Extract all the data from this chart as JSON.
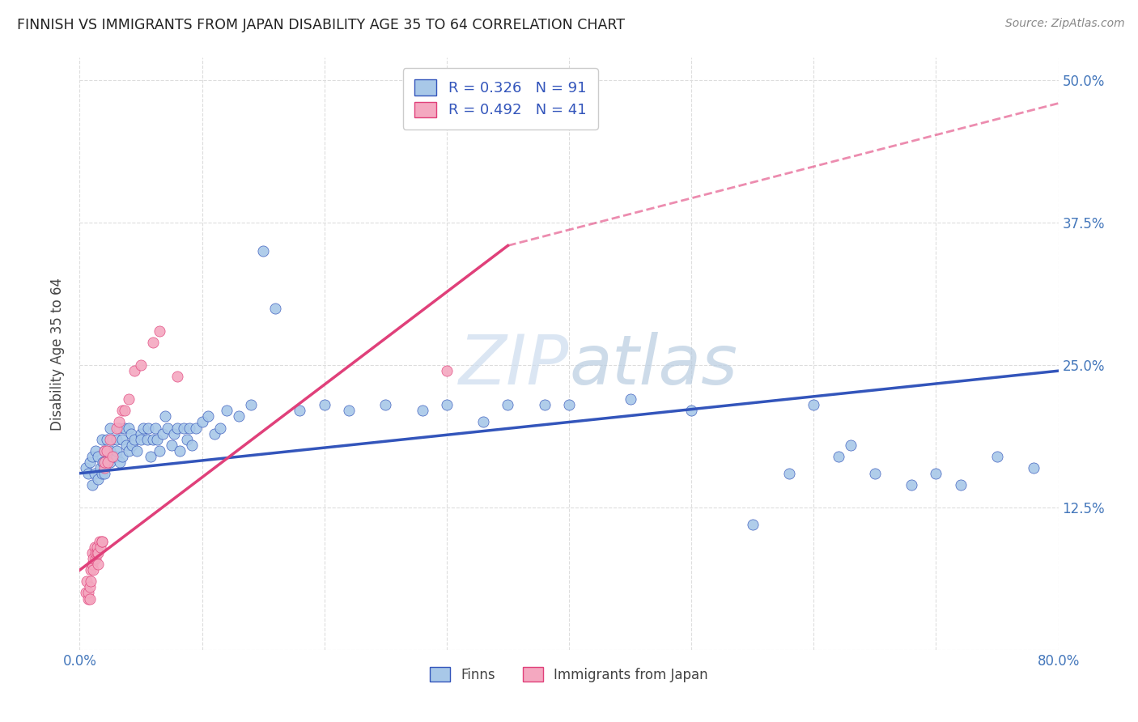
{
  "title": "FINNISH VS IMMIGRANTS FROM JAPAN DISABILITY AGE 35 TO 64 CORRELATION CHART",
  "source": "Source: ZipAtlas.com",
  "ylabel": "Disability Age 35 to 64",
  "xlim": [
    0.0,
    0.8
  ],
  "ylim": [
    0.0,
    0.52
  ],
  "xticks": [
    0.0,
    0.1,
    0.2,
    0.3,
    0.4,
    0.5,
    0.6,
    0.7,
    0.8
  ],
  "xticklabels": [
    "0.0%",
    "",
    "",
    "",
    "",
    "",
    "",
    "",
    "80.0%"
  ],
  "yticks": [
    0.0,
    0.125,
    0.25,
    0.375,
    0.5
  ],
  "yticklabels_right": [
    "",
    "12.5%",
    "25.0%",
    "37.5%",
    "50.0%"
  ],
  "legend_labels": [
    "Finns",
    "Immigrants from Japan"
  ],
  "finns_color": "#a8c8e8",
  "japan_color": "#f4a8c0",
  "finns_line_color": "#3355bb",
  "japan_line_color": "#e0407a",
  "R_finns": 0.326,
  "N_finns": 91,
  "R_japan": 0.492,
  "N_japan": 41,
  "background_color": "#ffffff",
  "grid_color": "#dddddd",
  "finns_x": [
    0.005,
    0.007,
    0.008,
    0.01,
    0.01,
    0.012,
    0.013,
    0.015,
    0.015,
    0.017,
    0.018,
    0.018,
    0.019,
    0.02,
    0.02,
    0.02,
    0.022,
    0.025,
    0.025,
    0.025,
    0.027,
    0.028,
    0.03,
    0.03,
    0.03,
    0.032,
    0.033,
    0.035,
    0.035,
    0.037,
    0.038,
    0.04,
    0.04,
    0.042,
    0.043,
    0.045,
    0.047,
    0.05,
    0.05,
    0.052,
    0.055,
    0.056,
    0.058,
    0.06,
    0.062,
    0.063,
    0.065,
    0.068,
    0.07,
    0.072,
    0.075,
    0.077,
    0.08,
    0.082,
    0.085,
    0.088,
    0.09,
    0.092,
    0.095,
    0.1,
    0.105,
    0.11,
    0.115,
    0.12,
    0.13,
    0.14,
    0.15,
    0.16,
    0.18,
    0.2,
    0.22,
    0.25,
    0.28,
    0.3,
    0.33,
    0.35,
    0.38,
    0.4,
    0.45,
    0.5,
    0.55,
    0.58,
    0.6,
    0.62,
    0.63,
    0.65,
    0.68,
    0.7,
    0.72,
    0.75,
    0.78
  ],
  "finns_y": [
    0.16,
    0.155,
    0.165,
    0.17,
    0.145,
    0.155,
    0.175,
    0.15,
    0.17,
    0.16,
    0.185,
    0.155,
    0.165,
    0.175,
    0.165,
    0.155,
    0.185,
    0.175,
    0.195,
    0.165,
    0.185,
    0.17,
    0.17,
    0.185,
    0.175,
    0.195,
    0.165,
    0.185,
    0.17,
    0.195,
    0.18,
    0.175,
    0.195,
    0.19,
    0.18,
    0.185,
    0.175,
    0.19,
    0.185,
    0.195,
    0.185,
    0.195,
    0.17,
    0.185,
    0.195,
    0.185,
    0.175,
    0.19,
    0.205,
    0.195,
    0.18,
    0.19,
    0.195,
    0.175,
    0.195,
    0.185,
    0.195,
    0.18,
    0.195,
    0.2,
    0.205,
    0.19,
    0.195,
    0.21,
    0.205,
    0.215,
    0.35,
    0.3,
    0.21,
    0.215,
    0.21,
    0.215,
    0.21,
    0.215,
    0.2,
    0.215,
    0.215,
    0.215,
    0.22,
    0.21,
    0.11,
    0.155,
    0.215,
    0.17,
    0.18,
    0.155,
    0.145,
    0.155,
    0.145,
    0.17,
    0.16
  ],
  "japan_x": [
    0.005,
    0.006,
    0.007,
    0.007,
    0.008,
    0.008,
    0.009,
    0.009,
    0.01,
    0.01,
    0.011,
    0.011,
    0.012,
    0.013,
    0.013,
    0.014,
    0.014,
    0.015,
    0.015,
    0.016,
    0.017,
    0.018,
    0.018,
    0.02,
    0.02,
    0.02,
    0.022,
    0.023,
    0.025,
    0.027,
    0.03,
    0.032,
    0.035,
    0.037,
    0.04,
    0.045,
    0.05,
    0.06,
    0.065,
    0.08,
    0.3
  ],
  "japan_y": [
    0.05,
    0.06,
    0.045,
    0.05,
    0.055,
    0.045,
    0.07,
    0.06,
    0.085,
    0.075,
    0.08,
    0.07,
    0.09,
    0.08,
    0.085,
    0.085,
    0.09,
    0.085,
    0.075,
    0.095,
    0.09,
    0.095,
    0.095,
    0.175,
    0.16,
    0.165,
    0.175,
    0.165,
    0.185,
    0.17,
    0.195,
    0.2,
    0.21,
    0.21,
    0.22,
    0.245,
    0.25,
    0.27,
    0.28,
    0.24,
    0.245
  ],
  "finns_reg": [
    0.0,
    0.8,
    0.155,
    0.245
  ],
  "japan_reg_solid": [
    0.0,
    0.35,
    0.07,
    0.355
  ],
  "japan_reg_dashed": [
    0.35,
    0.8,
    0.355,
    0.48
  ]
}
